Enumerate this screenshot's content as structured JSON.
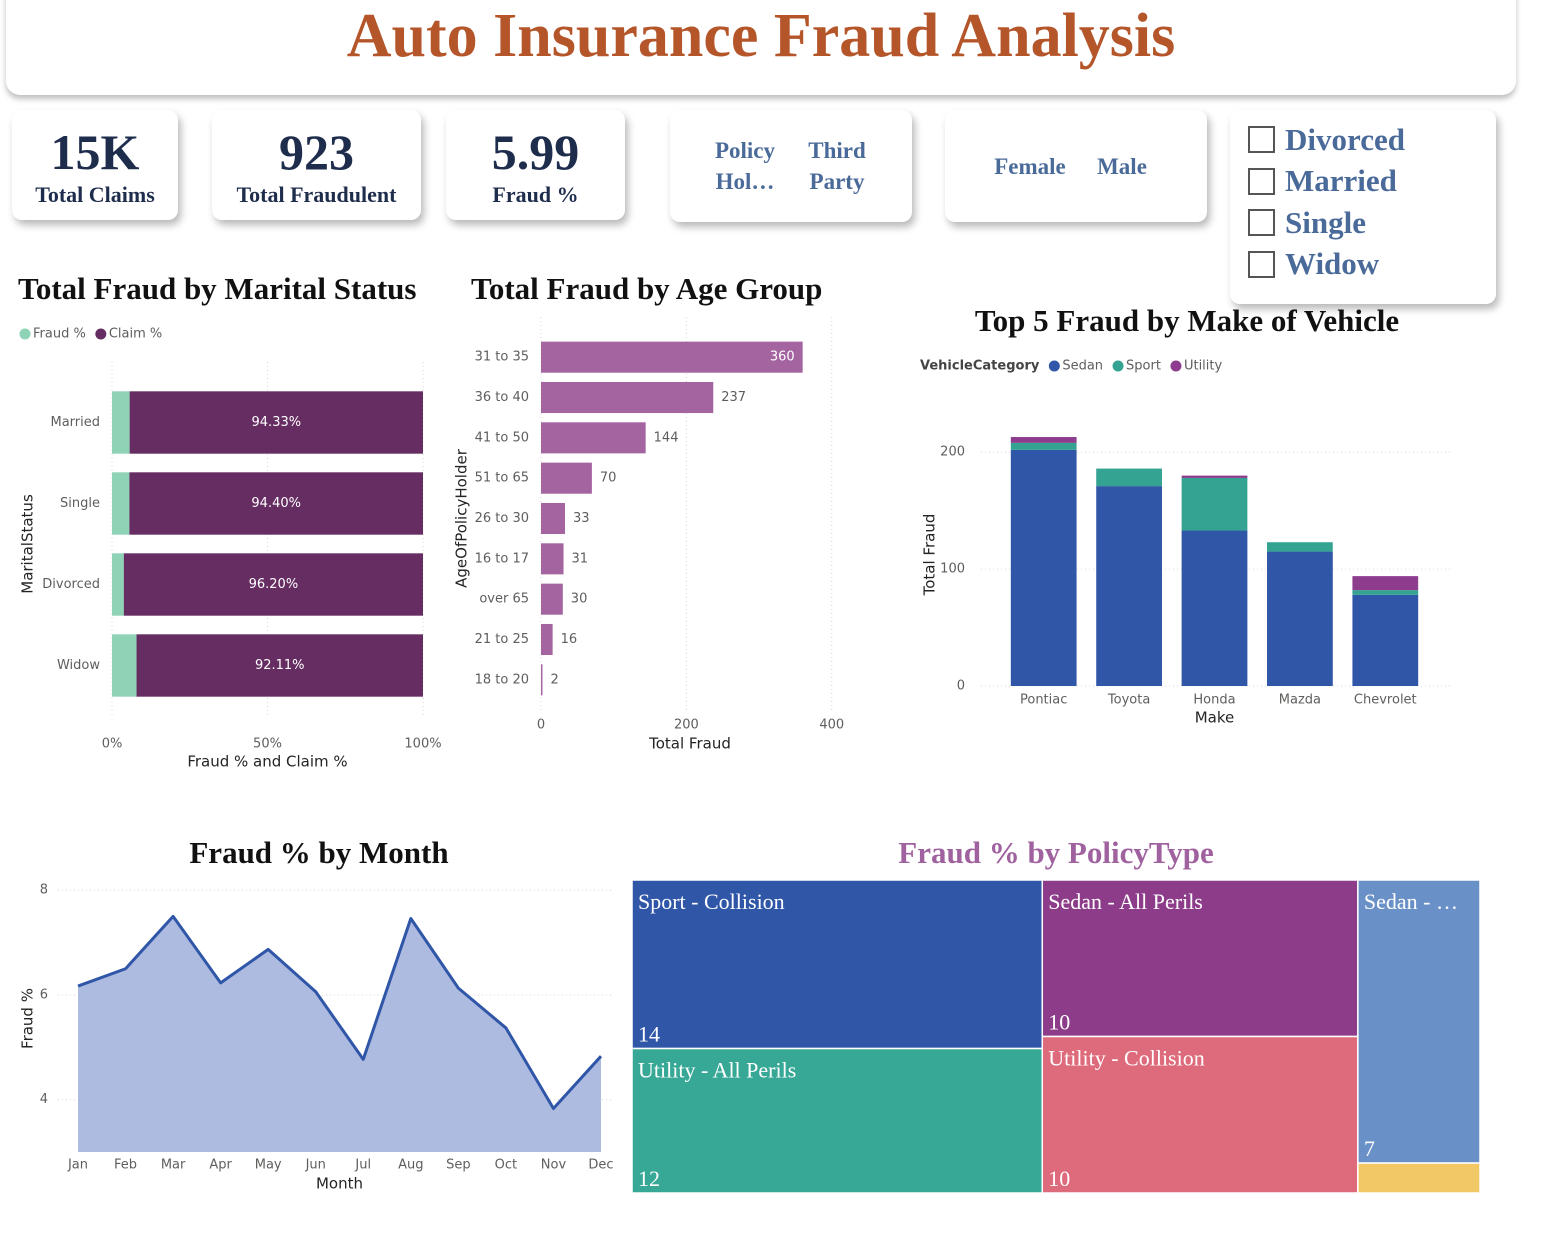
{
  "header": {
    "title": "Auto Insurance Fraud Analysis"
  },
  "kpis": [
    {
      "value": "15K",
      "label": "Total Claims"
    },
    {
      "value": "923",
      "label": "Total Fraudulent"
    },
    {
      "value": "5.99",
      "label": "Fraud %"
    }
  ],
  "slicers": {
    "policy_holder": [
      "Policy Hol…",
      "Third Party"
    ],
    "sex": [
      "Female",
      "Male"
    ],
    "marital_status": [
      "Divorced",
      "Married",
      "Single",
      "Widow"
    ]
  },
  "chart_data": [
    {
      "type": "bar",
      "orientation": "horizontal",
      "stacked": true,
      "title": "Total Fraud by Marital Status",
      "x_label": "Fraud % and Claim %",
      "y_label": "MaritalStatus",
      "categories": [
        "Married",
        "Single",
        "Divorced",
        "Widow"
      ],
      "series": [
        {
          "name": "Fraud %",
          "color": "#8fd3b6",
          "values": [
            5.67,
            5.6,
            3.8,
            7.89
          ]
        },
        {
          "name": "Claim %",
          "color": "#662d62",
          "values": [
            94.33,
            94.4,
            96.2,
            92.11
          ],
          "value_labels": [
            "94.33%",
            "94.40%",
            "96.20%",
            "92.11%"
          ]
        }
      ],
      "xlim": [
        0,
        100
      ],
      "xticks": [
        {
          "value": 0,
          "label": "0%"
        },
        {
          "value": 50,
          "label": "50%"
        },
        {
          "value": 100,
          "label": "100%"
        }
      ],
      "grid": true,
      "legend": "top-left"
    },
    {
      "type": "bar",
      "orientation": "horizontal",
      "title": "Total Fraud by Age Group",
      "x_label": "Total Fraud",
      "y_label": "AgeOfPolicyHolder",
      "categories": [
        "31 to 35",
        "36 to 40",
        "41 to 50",
        "51 to 65",
        "26 to 30",
        "16 to 17",
        "over 65",
        "21 to 25",
        "18 to 20"
      ],
      "values": [
        360,
        237,
        144,
        70,
        33,
        31,
        30,
        16,
        2
      ],
      "color": "#a3649f",
      "xlim": [
        0,
        410
      ],
      "xticks": [
        0,
        200,
        400
      ],
      "grid": true
    },
    {
      "type": "bar",
      "stacked": true,
      "title": "Top 5 Fraud by Make of Vehicle",
      "legend_title": "VehicleCategory",
      "x_label": "Make",
      "y_label": "Total Fraud",
      "categories": [
        "Pontiac",
        "Toyota",
        "Honda",
        "Mazda",
        "Chevrolet"
      ],
      "series": [
        {
          "name": "Sedan",
          "color": "#3056a8",
          "values": [
            202,
            171,
            133,
            115,
            78
          ]
        },
        {
          "name": "Sport",
          "color": "#34a392",
          "values": [
            6,
            15,
            45,
            8,
            4
          ]
        },
        {
          "name": "Utility",
          "color": "#8e3d8e",
          "values": [
            5,
            0,
            2,
            0,
            12
          ]
        }
      ],
      "ylim": [
        0,
        225
      ],
      "yticks": [
        0,
        100,
        200
      ],
      "grid": true,
      "legend": "top-left"
    },
    {
      "type": "area",
      "title": "Fraud % by Month",
      "x_label": "Month",
      "y_label": "Fraud %",
      "categories": [
        "Jan",
        "Feb",
        "Mar",
        "Apr",
        "May",
        "Jun",
        "Jul",
        "Aug",
        "Sep",
        "Oct",
        "Nov",
        "Dec"
      ],
      "values": [
        6.17,
        6.5,
        7.5,
        6.23,
        6.87,
        6.06,
        4.77,
        7.46,
        6.13,
        5.37,
        3.83,
        4.83
      ],
      "color": "#3056a8",
      "fill": "#adbbe0",
      "ylim": [
        3,
        8.1
      ],
      "yticks": [
        4,
        6,
        8
      ],
      "grid": true
    },
    {
      "type": "treemap",
      "title": "Fraud % by PolicyType",
      "categories": [
        "Sport - Collision",
        "Utility - All Perils",
        "Sedan - All Perils",
        "Utility - Collision",
        "Sedan - …",
        null
      ],
      "values": [
        14,
        12,
        10,
        10,
        7,
        0.74
      ],
      "colors": [
        "#3056a8",
        "#37a896",
        "#8c3c88",
        "#de6b7b",
        "#6a90c8",
        "#f2c766"
      ]
    }
  ]
}
